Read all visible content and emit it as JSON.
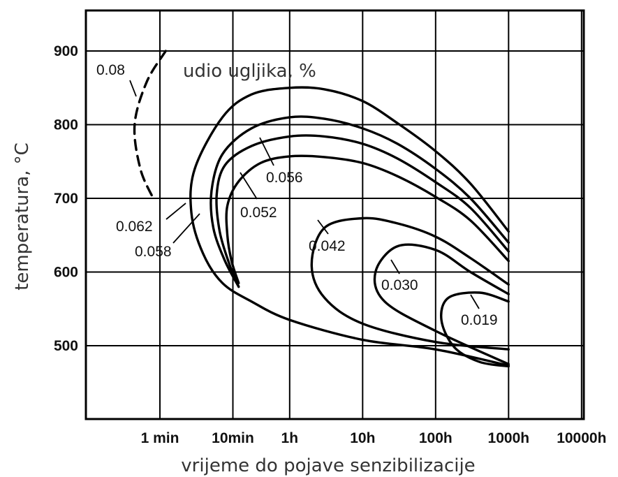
{
  "chart_data": {
    "type": "line",
    "title": "",
    "annotation": "udio ugljika, %",
    "xlabel": "vrijeme do pojave senzibilizacije",
    "ylabel": "temperatura, °C",
    "x_scale": "log",
    "x_unit": "hours",
    "x_ticks": [
      {
        "label": "1 min",
        "value": 0.01667
      },
      {
        "label": "10min",
        "value": 0.1667
      },
      {
        "label": "1h",
        "value": 1
      },
      {
        "label": "10h",
        "value": 10
      },
      {
        "label": "100h",
        "value": 100
      },
      {
        "label": "1000h",
        "value": 1000
      },
      {
        "label": "10000h",
        "value": 10000
      }
    ],
    "y_ticks": [
      500,
      600,
      700,
      800,
      900
    ],
    "ylim": [
      400,
      955
    ],
    "grid": true,
    "series": [
      {
        "name": "0.08",
        "style": "dashed",
        "points": [
          [
            0.02,
            900
          ],
          [
            0.011,
            858
          ],
          [
            0.0075,
            800
          ],
          [
            0.009,
            740
          ],
          [
            0.0135,
            700
          ]
        ]
      },
      {
        "name": "0.062",
        "style": "solid",
        "points": [
          [
            1000,
            655
          ],
          [
            300,
            720
          ],
          [
            100,
            764
          ],
          [
            30,
            802
          ],
          [
            10,
            832
          ],
          [
            3,
            848
          ],
          [
            1,
            850
          ],
          [
            0.3,
            841
          ],
          [
            0.12,
            810
          ],
          [
            0.05,
            740
          ],
          [
            0.045,
            680
          ],
          [
            0.065,
            625
          ],
          [
            0.12,
            585
          ],
          [
            0.3,
            560
          ],
          [
            1,
            535
          ],
          [
            10,
            508
          ],
          [
            100,
            495
          ],
          [
            1000,
            473
          ]
        ]
      },
      {
        "name": "0.058",
        "style": "solid",
        "points": [
          [
            1000,
            640
          ],
          [
            300,
            700
          ],
          [
            100,
            740
          ],
          [
            30,
            774
          ],
          [
            10,
            795
          ],
          [
            3,
            808
          ],
          [
            1,
            810
          ],
          [
            0.3,
            795
          ],
          [
            0.12,
            760
          ],
          [
            0.085,
            710
          ],
          [
            0.09,
            660
          ],
          [
            0.13,
            615
          ],
          [
            0.2,
            580
          ]
        ]
      },
      {
        "name": "0.056",
        "style": "solid",
        "points": [
          [
            1000,
            628
          ],
          [
            300,
            687
          ],
          [
            100,
            722
          ],
          [
            30,
            754
          ],
          [
            10,
            774
          ],
          [
            3,
            784
          ],
          [
            1,
            784
          ],
          [
            0.3,
            771
          ],
          [
            0.13,
            745
          ],
          [
            0.1,
            705
          ],
          [
            0.11,
            655
          ],
          [
            0.15,
            610
          ],
          [
            0.2,
            580
          ]
        ]
      },
      {
        "name": "0.052",
        "style": "solid",
        "points": [
          [
            1000,
            615
          ],
          [
            300,
            670
          ],
          [
            100,
            702
          ],
          [
            30,
            730
          ],
          [
            10,
            748
          ],
          [
            3,
            756
          ],
          [
            1,
            757
          ],
          [
            0.4,
            748
          ],
          [
            0.2,
            723
          ],
          [
            0.14,
            690
          ],
          [
            0.14,
            650
          ],
          [
            0.16,
            615
          ],
          [
            0.2,
            585
          ]
        ]
      },
      {
        "name": "0.042",
        "style": "solid",
        "points": [
          [
            1000,
            583
          ],
          [
            300,
            619
          ],
          [
            100,
            648
          ],
          [
            30,
            666
          ],
          [
            10,
            673
          ],
          [
            3,
            660
          ],
          [
            2,
            610
          ],
          [
            3,
            565
          ],
          [
            10,
            530
          ],
          [
            100,
            505
          ],
          [
            1000,
            495
          ]
        ]
      },
      {
        "name": "0.030",
        "style": "solid",
        "points": [
          [
            1000,
            570
          ],
          [
            300,
            600
          ],
          [
            100,
            630
          ],
          [
            30,
            635
          ],
          [
            15,
            600
          ],
          [
            20,
            560
          ],
          [
            100,
            520
          ],
          [
            1000,
            475
          ]
        ]
      },
      {
        "name": "0.019",
        "style": "solid",
        "points": [
          [
            1000,
            560
          ],
          [
            400,
            572
          ],
          [
            150,
            565
          ],
          [
            120,
            535
          ],
          [
            180,
            498
          ],
          [
            400,
            478
          ],
          [
            1000,
            472
          ]
        ]
      }
    ]
  }
}
